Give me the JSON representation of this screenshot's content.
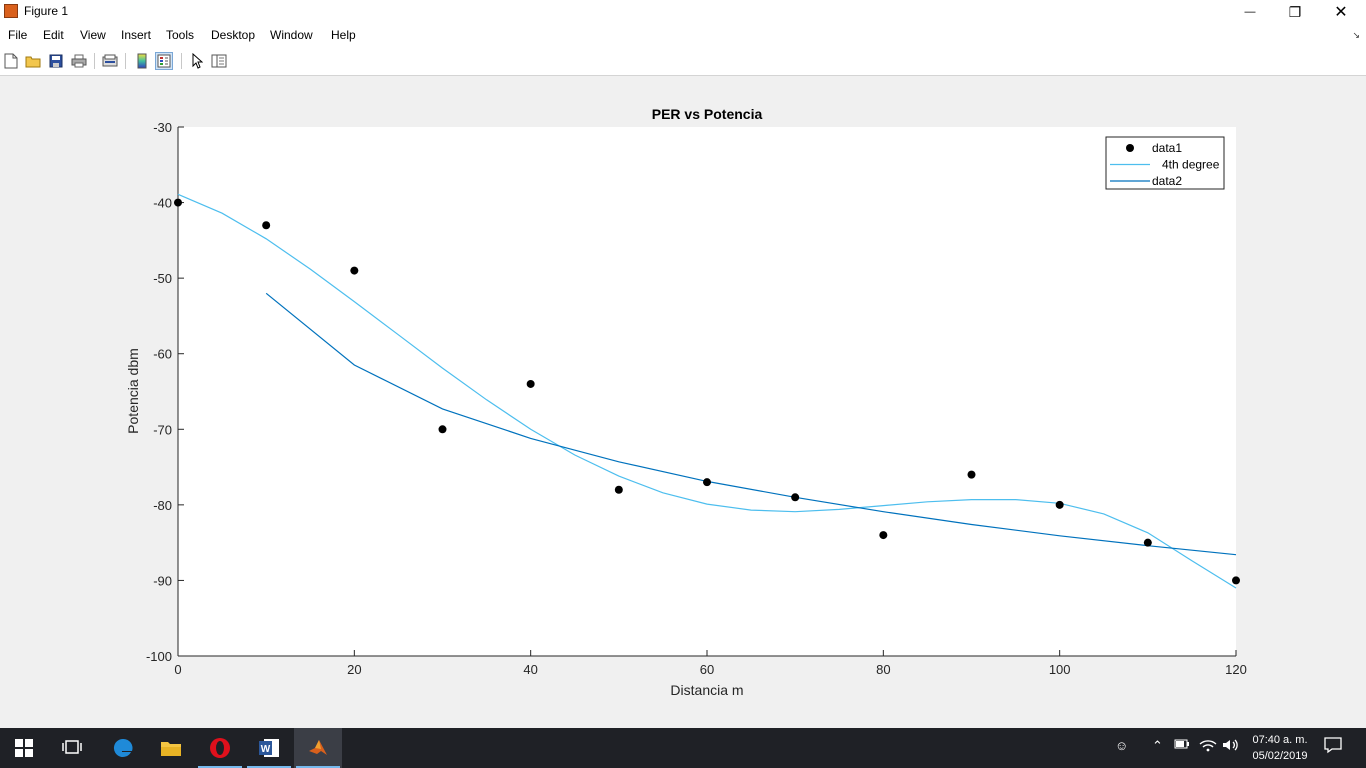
{
  "window": {
    "title": "Figure 1",
    "minimize_glyph": "—",
    "restore_glyph": "❐",
    "close_glyph": "✕"
  },
  "menu": {
    "items": [
      "File",
      "Edit",
      "View",
      "Insert",
      "Tools",
      "Desktop",
      "Window",
      "Help"
    ]
  },
  "toolbar": {
    "icons": [
      "new-figure-icon",
      "open-file-icon",
      "save-icon",
      "print-icon",
      "link-plot-icon",
      "colorbar-icon",
      "legend-icon",
      "pointer-icon",
      "property-inspector-icon"
    ]
  },
  "chart_data": {
    "type": "scatter",
    "title": "PER vs Potencia",
    "xlabel": "Distancia m",
    "ylabel": "Potencia dbm",
    "xlim": [
      0,
      120
    ],
    "ylim": [
      -100,
      -30
    ],
    "xticks": [
      0,
      20,
      40,
      60,
      80,
      100,
      120
    ],
    "yticks": [
      -30,
      -40,
      -50,
      -60,
      -70,
      -80,
      -90,
      -100
    ],
    "grid": false,
    "legend_position": "top-right",
    "series": [
      {
        "name": "data1",
        "kind": "markers",
        "color": "#000000",
        "x": [
          0,
          10,
          20,
          30,
          40,
          50,
          60,
          70,
          80,
          90,
          100,
          110,
          120
        ],
        "y": [
          -40,
          -43,
          -49,
          -70,
          -64,
          -78,
          -77,
          -79,
          -84,
          -76,
          -80,
          -85,
          -90
        ]
      },
      {
        "name": "4th degree",
        "kind": "line",
        "color": "#4dbeee",
        "x": [
          0,
          5,
          10,
          15,
          20,
          25,
          30,
          35,
          40,
          45,
          50,
          55,
          60,
          65,
          70,
          75,
          80,
          85,
          90,
          95,
          100,
          105,
          110,
          115,
          120
        ],
        "y": [
          -38.9,
          -41.4,
          -44.8,
          -48.8,
          -53.1,
          -57.5,
          -61.9,
          -66.1,
          -70.0,
          -73.4,
          -76.2,
          -78.4,
          -79.9,
          -80.7,
          -80.9,
          -80.6,
          -80.1,
          -79.6,
          -79.3,
          -79.3,
          -79.8,
          -81.2,
          -83.7,
          -87.4,
          -91.0
        ]
      },
      {
        "name": "data2",
        "kind": "line",
        "color": "#0072bd",
        "x": [
          10,
          20,
          30,
          40,
          50,
          60,
          70,
          80,
          90,
          100,
          110,
          120
        ],
        "y": [
          -52,
          -61.5,
          -67.3,
          -71.2,
          -74.3,
          -76.9,
          -79.0,
          -80.9,
          -82.6,
          -84.1,
          -85.4,
          -86.6
        ]
      }
    ]
  },
  "taskbar": {
    "apps": [
      "windows-start-icon",
      "task-view-icon",
      "edge-icon",
      "file-explorer-icon",
      "opera-icon",
      "word-icon",
      "matlab-icon"
    ],
    "clock_time": "07:40 a. m.",
    "clock_date": "05/02/2019"
  }
}
